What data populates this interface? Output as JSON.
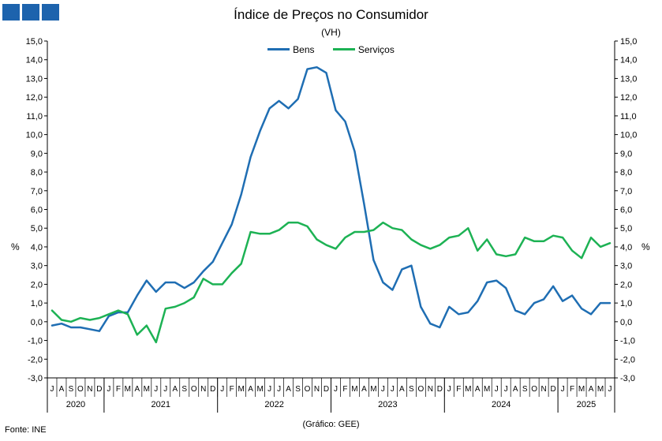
{
  "logo": {
    "blocks": 3,
    "color": "#1d63ad"
  },
  "footer": {
    "source": "Fonte: INE",
    "credit": "(Gráfico: GEE)"
  },
  "chart_data": {
    "type": "line",
    "title": "Índice de Preços no Consumidor",
    "subtitle": "(VH)",
    "ylabel_left": "%",
    "ylabel_right": "%",
    "ylim": [
      -3.0,
      15.0
    ],
    "ytick_step": 1.0,
    "grid": false,
    "legend_position": "top-center",
    "month_labels": [
      "J",
      "A",
      "S",
      "O",
      "N",
      "D",
      "J",
      "F",
      "M",
      "A",
      "M",
      "J",
      "J",
      "A",
      "S",
      "O",
      "N",
      "D",
      "J",
      "F",
      "M",
      "A",
      "M",
      "J",
      "J",
      "A",
      "S",
      "O",
      "N",
      "D",
      "J",
      "F",
      "M",
      "A",
      "M",
      "J",
      "J",
      "A",
      "S",
      "O",
      "N",
      "D",
      "J",
      "F",
      "M",
      "A",
      "M",
      "J",
      "J",
      "A",
      "S",
      "O",
      "N",
      "D",
      "J",
      "F",
      "M",
      "A",
      "M",
      "J"
    ],
    "year_groups": [
      {
        "label": "2020",
        "count": 6
      },
      {
        "label": "2021",
        "count": 12
      },
      {
        "label": "2022",
        "count": 12
      },
      {
        "label": "2023",
        "count": 12
      },
      {
        "label": "2024",
        "count": 12
      },
      {
        "label": "2025",
        "count": 6
      }
    ],
    "series": [
      {
        "name": "Bens",
        "color": "#1f6eb3",
        "values": [
          -0.2,
          -0.1,
          -0.3,
          -0.3,
          -0.4,
          -0.5,
          0.3,
          0.5,
          0.5,
          1.4,
          2.2,
          1.6,
          2.1,
          2.1,
          1.8,
          2.1,
          2.7,
          3.2,
          4.2,
          5.2,
          6.8,
          8.8,
          10.2,
          11.4,
          11.8,
          11.4,
          11.9,
          13.5,
          13.6,
          13.3,
          11.3,
          10.7,
          9.1,
          6.3,
          3.3,
          2.1,
          1.7,
          2.8,
          3.0,
          0.8,
          -0.1,
          -0.3,
          0.8,
          0.4,
          0.5,
          1.1,
          2.1,
          2.2,
          1.8,
          0.6,
          0.4,
          1.0,
          1.2,
          1.9,
          1.1,
          1.4,
          0.7,
          0.4,
          1.0,
          1.0
        ]
      },
      {
        "name": "Serviços",
        "color": "#1db254",
        "values": [
          0.6,
          0.1,
          0.0,
          0.2,
          0.1,
          0.2,
          0.4,
          0.6,
          0.4,
          -0.7,
          -0.2,
          -1.1,
          0.7,
          0.8,
          1.0,
          1.3,
          2.3,
          2.0,
          2.0,
          2.6,
          3.1,
          4.8,
          4.7,
          4.7,
          4.9,
          5.3,
          5.3,
          5.1,
          4.4,
          4.1,
          3.9,
          4.5,
          4.8,
          4.8,
          4.9,
          5.3,
          5.0,
          4.9,
          4.4,
          4.1,
          3.9,
          4.1,
          4.5,
          4.6,
          5.0,
          3.8,
          4.4,
          3.6,
          3.5,
          3.6,
          4.5,
          4.3,
          4.3,
          4.6,
          4.5,
          3.8,
          3.4,
          4.5,
          4.0,
          4.2
        ]
      }
    ]
  }
}
